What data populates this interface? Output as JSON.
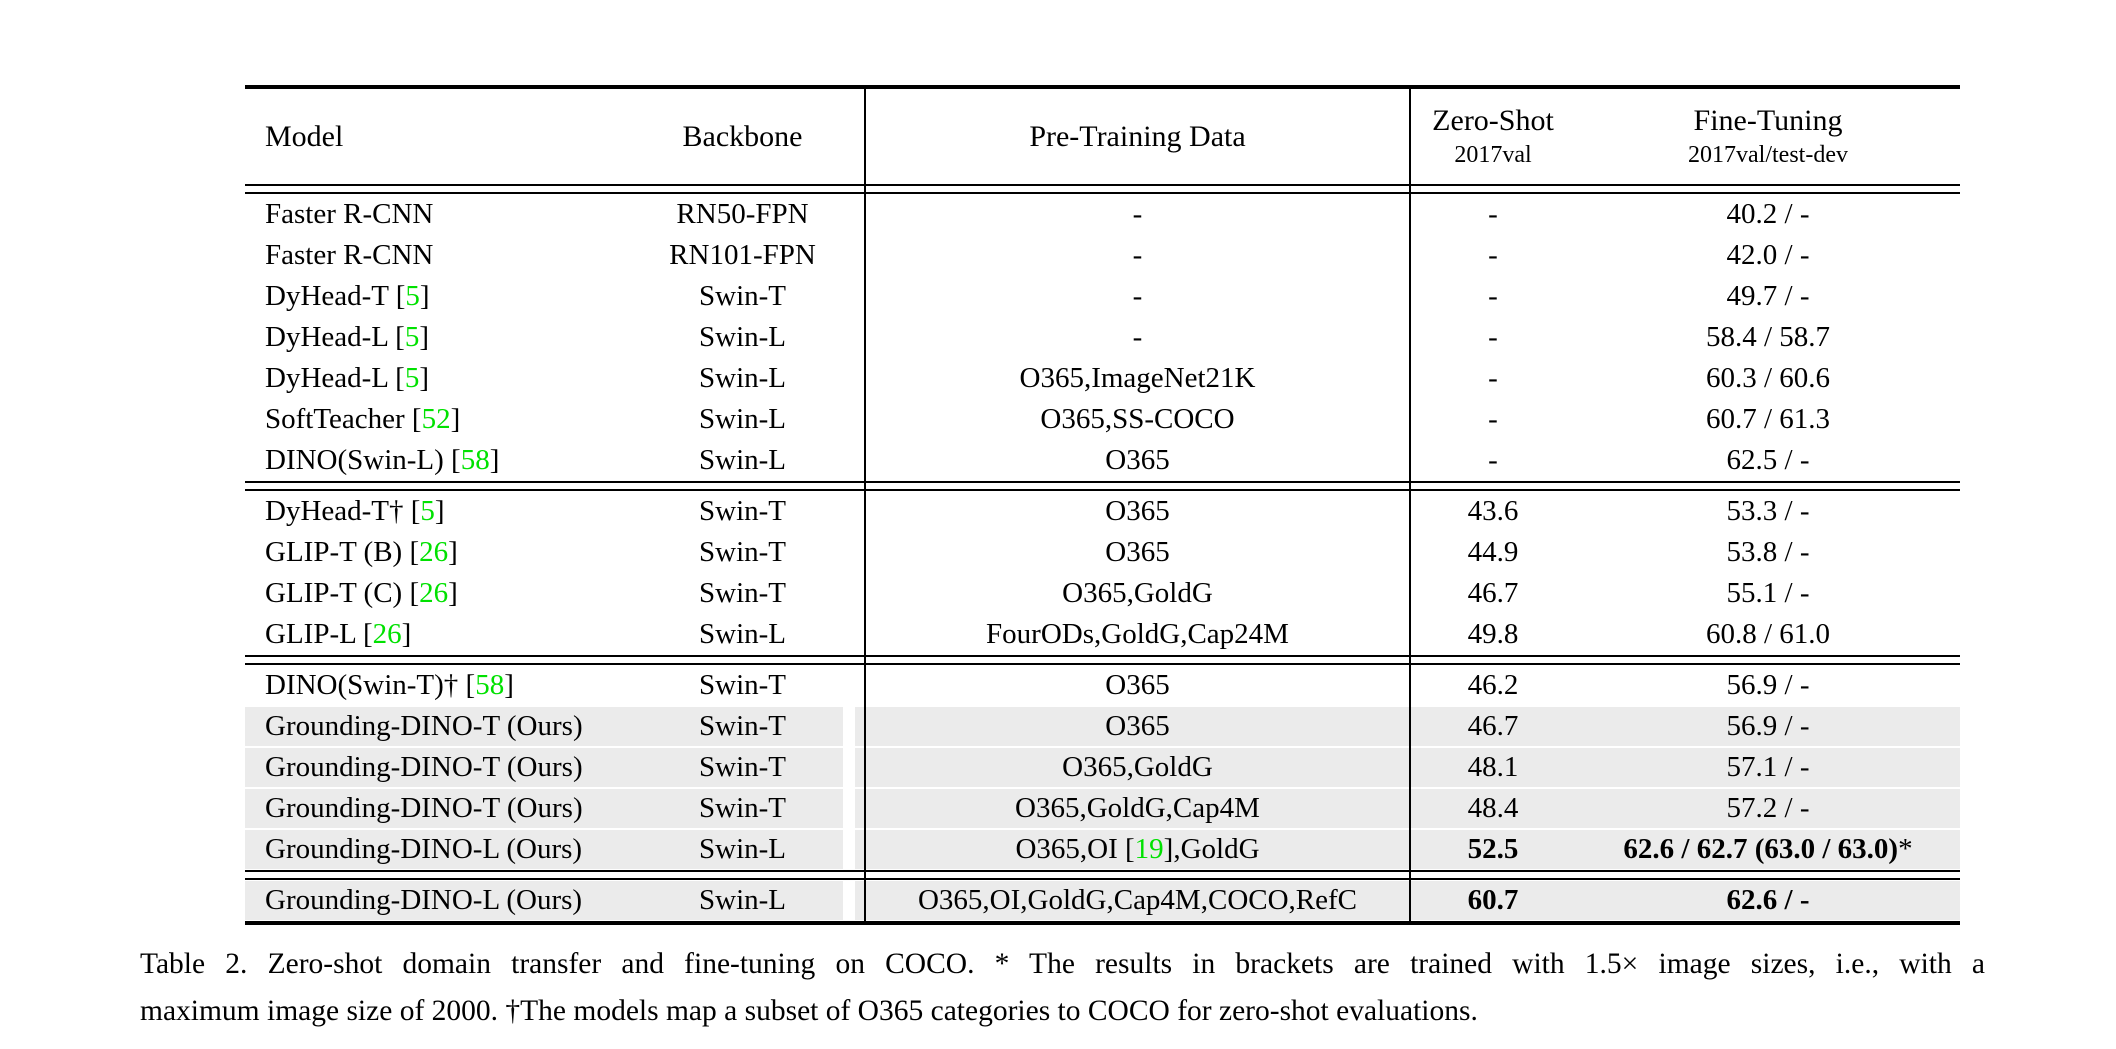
{
  "colors": {
    "citation_green": "#00e100",
    "highlight_gray": "#ebebeb",
    "text_black": "#000000"
  },
  "table": {
    "headers": {
      "model": "Model",
      "backbone": "Backbone",
      "pretrain": "Pre-Training Data",
      "zero_shot": "Zero-Shot",
      "zero_shot_sub": "2017val",
      "fine_tune": "Fine-Tuning",
      "fine_tune_sub": "2017val/test-dev"
    },
    "sections": [
      {
        "rows": [
          {
            "model": "Faster R-CNN",
            "backbone": "RN50-FPN",
            "pretrain": "-",
            "zero_shot": "-",
            "fine_tune": "40.2 / -",
            "highlight": false
          },
          {
            "model": "Faster R-CNN",
            "backbone": "RN101-FPN",
            "pretrain": "-",
            "zero_shot": "-",
            "fine_tune": "42.0 / -",
            "highlight": false
          },
          {
            "model": [
              {
                "t": "DyHead-T ["
              },
              {
                "t": "5",
                "c": "green"
              },
              {
                "t": "]"
              }
            ],
            "backbone": "Swin-T",
            "pretrain": "-",
            "zero_shot": "-",
            "fine_tune": "49.7 / -",
            "highlight": false
          },
          {
            "model": [
              {
                "t": "DyHead-L ["
              },
              {
                "t": "5",
                "c": "green"
              },
              {
                "t": "]"
              }
            ],
            "backbone": "Swin-L",
            "pretrain": "-",
            "zero_shot": "-",
            "fine_tune": "58.4 / 58.7",
            "highlight": false
          },
          {
            "model": [
              {
                "t": "DyHead-L ["
              },
              {
                "t": "5",
                "c": "green"
              },
              {
                "t": "]"
              }
            ],
            "backbone": "Swin-L",
            "pretrain": "O365,ImageNet21K",
            "zero_shot": "-",
            "fine_tune": "60.3 / 60.6",
            "highlight": false
          },
          {
            "model": [
              {
                "t": "SoftTeacher ["
              },
              {
                "t": "52",
                "c": "green"
              },
              {
                "t": "]"
              }
            ],
            "backbone": "Swin-L",
            "pretrain": "O365,SS-COCO",
            "zero_shot": "-",
            "fine_tune": "60.7 / 61.3",
            "highlight": false
          },
          {
            "model": [
              {
                "t": "DINO(Swin-L) ["
              },
              {
                "t": "58",
                "c": "green"
              },
              {
                "t": "]"
              }
            ],
            "backbone": "Swin-L",
            "pretrain": "O365",
            "zero_shot": "-",
            "fine_tune": "62.5 / -",
            "highlight": false
          }
        ]
      },
      {
        "rows": [
          {
            "model": [
              {
                "t": "DyHead-T† ["
              },
              {
                "t": "5",
                "c": "green"
              },
              {
                "t": "]"
              }
            ],
            "backbone": "Swin-T",
            "pretrain": "O365",
            "zero_shot": "43.6",
            "fine_tune": "53.3 / -",
            "highlight": false
          },
          {
            "model": [
              {
                "t": "GLIP-T (B) ["
              },
              {
                "t": "26",
                "c": "green"
              },
              {
                "t": "]"
              }
            ],
            "backbone": "Swin-T",
            "pretrain": "O365",
            "zero_shot": "44.9",
            "fine_tune": "53.8 / -",
            "highlight": false
          },
          {
            "model": [
              {
                "t": "GLIP-T (C) ["
              },
              {
                "t": "26",
                "c": "green"
              },
              {
                "t": "]"
              }
            ],
            "backbone": "Swin-T",
            "pretrain": "O365,GoldG",
            "zero_shot": "46.7",
            "fine_tune": "55.1 / -",
            "highlight": false
          },
          {
            "model": [
              {
                "t": "GLIP-L ["
              },
              {
                "t": "26",
                "c": "green"
              },
              {
                "t": "]"
              }
            ],
            "backbone": "Swin-L",
            "pretrain": "FourODs,GoldG,Cap24M",
            "zero_shot": "49.8",
            "fine_tune": "60.8 / 61.0",
            "highlight": false
          }
        ]
      },
      {
        "rows": [
          {
            "model": [
              {
                "t": "DINO(Swin-T)† ["
              },
              {
                "t": "58",
                "c": "green"
              },
              {
                "t": "]"
              }
            ],
            "backbone": "Swin-T",
            "pretrain": "O365",
            "zero_shot": "46.2",
            "fine_tune": "56.9 / -",
            "highlight": false
          },
          {
            "model": "Grounding-DINO-T (Ours)",
            "backbone": "Swin-T",
            "pretrain": "O365",
            "zero_shot": "46.7",
            "fine_tune": "56.9 / -",
            "highlight": true
          },
          {
            "model": "Grounding-DINO-T (Ours)",
            "backbone": "Swin-T",
            "pretrain": "O365,GoldG",
            "zero_shot": "48.1",
            "fine_tune": "57.1 / -",
            "highlight": true
          },
          {
            "model": "Grounding-DINO-T (Ours)",
            "backbone": "Swin-T",
            "pretrain": "O365,GoldG,Cap4M",
            "zero_shot": "48.4",
            "fine_tune": "57.2 / -",
            "highlight": true
          },
          {
            "model": "Grounding-DINO-L (Ours)",
            "backbone": "Swin-L",
            "pretrain": [
              {
                "t": "O365,OI ["
              },
              {
                "t": "19",
                "c": "green"
              },
              {
                "t": "],GoldG"
              }
            ],
            "zero_shot": [
              {
                "t": "52.5",
                "b": true
              }
            ],
            "fine_tune": [
              {
                "t": "62.6 / 62.7 (63.0 / 63.0)",
                "b": true
              },
              {
                "t": "*"
              }
            ],
            "highlight": true
          }
        ]
      },
      {
        "rows": [
          {
            "model": "Grounding-DINO-L (Ours)",
            "backbone": "Swin-L",
            "pretrain": "O365,OI,GoldG,Cap4M,COCO,RefC",
            "zero_shot": [
              {
                "t": "60.7",
                "b": true
              }
            ],
            "fine_tune": [
              {
                "t": "62.6 / -",
                "b": true
              }
            ],
            "highlight": true
          }
        ]
      }
    ],
    "caption": {
      "line1": "Table 2.  Zero-shot domain transfer and fine-tuning on COCO. * The results in brackets are trained with 1.5× image sizes, i.e., with a",
      "line2": "maximum image size of 2000. †The models map a subset of O365 categories to COCO for zero-shot evaluations."
    }
  }
}
